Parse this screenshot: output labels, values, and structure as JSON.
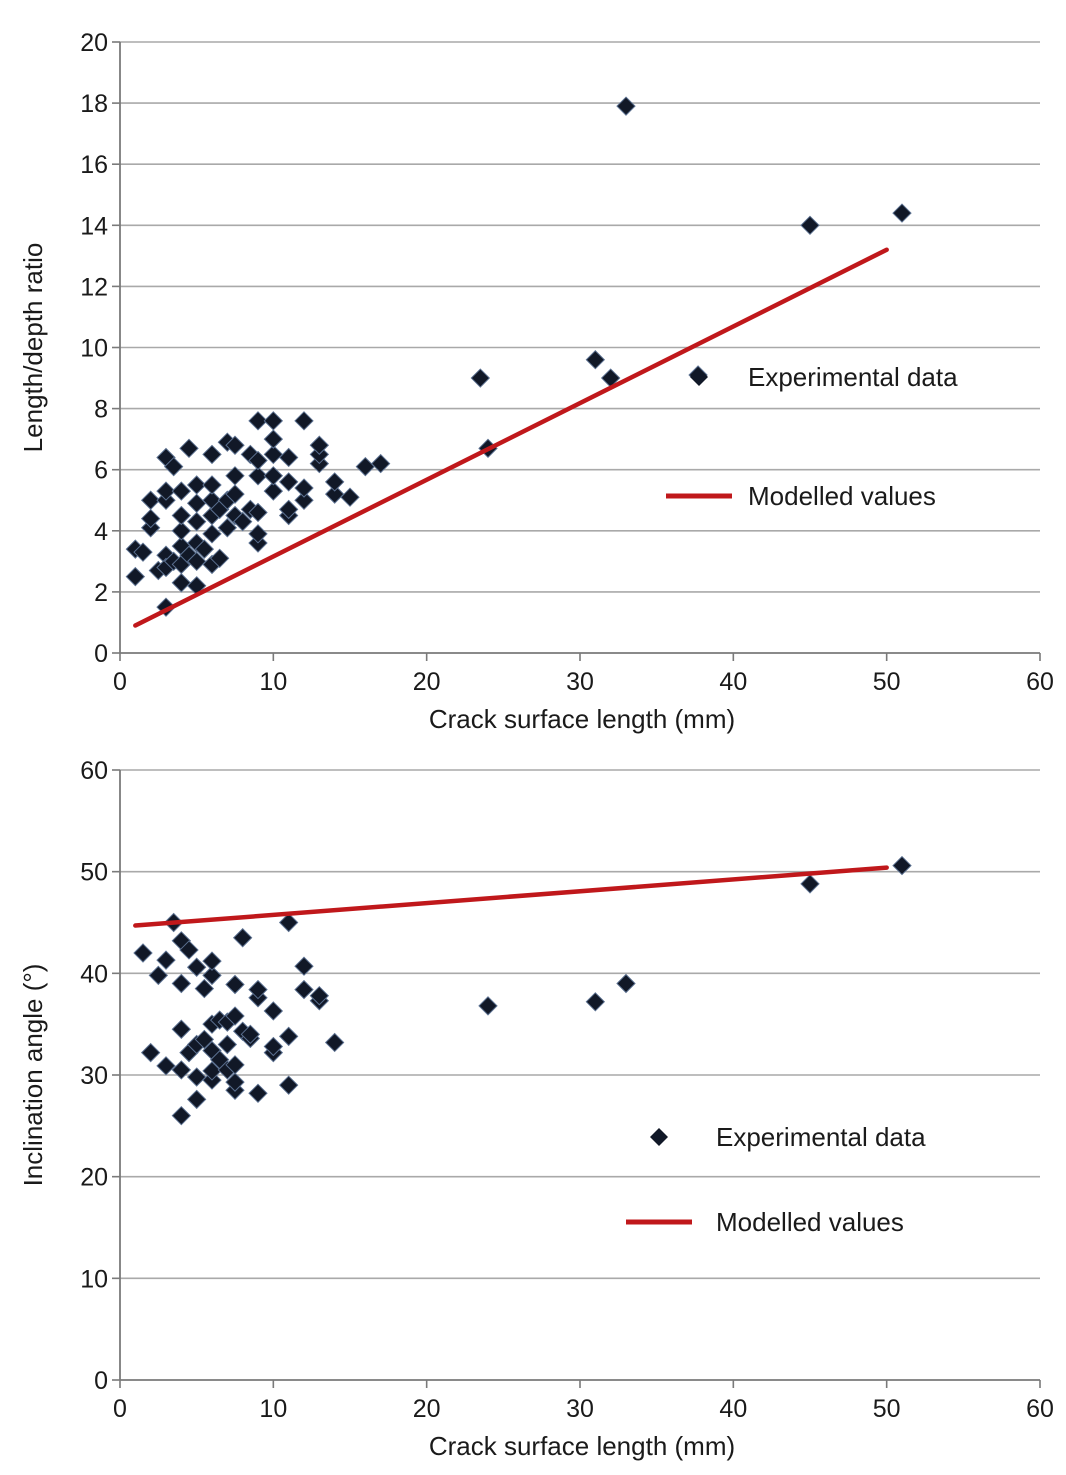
{
  "chart_data": [
    {
      "type": "scatter",
      "title": "",
      "xlabel": "Crack surface length (mm)",
      "ylabel": "Length/depth ratio",
      "xlim": [
        0,
        60
      ],
      "ylim": [
        0,
        20
      ],
      "xticks": [
        "0",
        "10",
        "20",
        "30",
        "40",
        "50",
        "60"
      ],
      "yticks": [
        "0",
        "2",
        "4",
        "6",
        "8",
        "10",
        "12",
        "14",
        "16",
        "18",
        "20"
      ],
      "grid": "horizontal",
      "legend_position": "right",
      "colors": {
        "points": "#111827",
        "line": "#c0181b"
      },
      "series": [
        {
          "name": "Experimental data",
          "kind": "scatter",
          "points": [
            [
              1,
              2.5
            ],
            [
              1,
              3.4
            ],
            [
              1.5,
              3.3
            ],
            [
              2,
              4.1
            ],
            [
              2,
              4.4
            ],
            [
              2,
              5.0
            ],
            [
              2.5,
              2.7
            ],
            [
              3,
              1.5
            ],
            [
              3,
              3.2
            ],
            [
              3,
              2.8
            ],
            [
              3,
              5.0
            ],
            [
              3,
              5.3
            ],
            [
              3,
              6.4
            ],
            [
              3.5,
              6.1
            ],
            [
              3.5,
              3.0
            ],
            [
              4,
              2.3
            ],
            [
              4,
              2.9
            ],
            [
              4,
              3.5
            ],
            [
              4,
              4.0
            ],
            [
              4,
              4.5
            ],
            [
              4,
              5.3
            ],
            [
              4.5,
              6.7
            ],
            [
              4.5,
              3.2
            ],
            [
              5,
              2.2
            ],
            [
              5,
              3.0
            ],
            [
              5,
              3.6
            ],
            [
              5,
              4.3
            ],
            [
              5,
              4.9
            ],
            [
              5,
              5.5
            ],
            [
              5.5,
              3.4
            ],
            [
              6,
              2.9
            ],
            [
              6,
              3.9
            ],
            [
              6,
              4.5
            ],
            [
              6,
              5.0
            ],
            [
              6,
              5.5
            ],
            [
              6,
              6.5
            ],
            [
              6.5,
              3.1
            ],
            [
              6.5,
              4.7
            ],
            [
              7,
              4.1
            ],
            [
              7,
              5.0
            ],
            [
              7,
              6.9
            ],
            [
              7.5,
              4.5
            ],
            [
              7.5,
              5.2
            ],
            [
              7.5,
              5.8
            ],
            [
              7.5,
              6.8
            ],
            [
              8,
              4.3
            ],
            [
              8.5,
              4.7
            ],
            [
              8.5,
              6.5
            ],
            [
              9,
              3.6
            ],
            [
              9,
              3.9
            ],
            [
              9,
              4.6
            ],
            [
              9,
              5.8
            ],
            [
              9,
              6.3
            ],
            [
              9,
              7.6
            ],
            [
              10,
              5.3
            ],
            [
              10,
              5.8
            ],
            [
              10,
              6.5
            ],
            [
              10,
              7.0
            ],
            [
              10,
              7.6
            ],
            [
              11,
              4.5
            ],
            [
              11,
              4.7
            ],
            [
              11,
              5.6
            ],
            [
              11,
              6.4
            ],
            [
              12,
              5.0
            ],
            [
              12,
              5.4
            ],
            [
              12,
              7.6
            ],
            [
              13,
              6.2
            ],
            [
              13,
              6.5
            ],
            [
              13,
              6.8
            ],
            [
              14,
              5.2
            ],
            [
              14,
              5.6
            ],
            [
              15,
              5.1
            ],
            [
              16,
              6.1
            ],
            [
              17,
              6.2
            ],
            [
              23.5,
              9.0
            ],
            [
              24,
              6.7
            ],
            [
              31,
              9.6
            ],
            [
              32,
              9.0
            ],
            [
              33,
              17.9
            ],
            [
              37.7,
              9.1
            ],
            [
              45,
              14.0
            ],
            [
              51,
              14.4
            ]
          ]
        },
        {
          "name": "Modelled values",
          "kind": "line",
          "points": [
            [
              1,
              0.9
            ],
            [
              50,
              13.2
            ]
          ]
        }
      ]
    },
    {
      "type": "scatter",
      "title": "",
      "xlabel": "Crack surface length (mm)",
      "ylabel": "Inclination angle (°)",
      "xlim": [
        0,
        60
      ],
      "ylim": [
        0,
        60
      ],
      "xticks": [
        "0",
        "10",
        "20",
        "30",
        "40",
        "50",
        "60"
      ],
      "yticks": [
        "0",
        "10",
        "20",
        "30",
        "40",
        "50",
        "60"
      ],
      "grid": "horizontal",
      "legend_position": "bottom-right",
      "colors": {
        "points": "#111827",
        "line": "#c0181b"
      },
      "series": [
        {
          "name": "Experimental data",
          "kind": "scatter",
          "points": [
            [
              1.5,
              42.0
            ],
            [
              2,
              32.2
            ],
            [
              2.5,
              39.8
            ],
            [
              3,
              30.9
            ],
            [
              3,
              41.3
            ],
            [
              3.5,
              45.0
            ],
            [
              4,
              26.0
            ],
            [
              4,
              30.5
            ],
            [
              4,
              34.5
            ],
            [
              4,
              39.0
            ],
            [
              4,
              43.2
            ],
            [
              4.5,
              42.3
            ],
            [
              4.5,
              32.2
            ],
            [
              5,
              27.6
            ],
            [
              5,
              29.8
            ],
            [
              5,
              33.0
            ],
            [
              5,
              40.6
            ],
            [
              5.5,
              33.5
            ],
            [
              5.5,
              38.5
            ],
            [
              6,
              29.5
            ],
            [
              6,
              30.4
            ],
            [
              6,
              32.4
            ],
            [
              6,
              35.0
            ],
            [
              6,
              39.8
            ],
            [
              6,
              41.2
            ],
            [
              6.5,
              31.5
            ],
            [
              6.5,
              35.4
            ],
            [
              7,
              30.5
            ],
            [
              7,
              33.0
            ],
            [
              7,
              35.2
            ],
            [
              7.5,
              28.5
            ],
            [
              7.5,
              29.3
            ],
            [
              7.5,
              31.0
            ],
            [
              7.5,
              35.8
            ],
            [
              7.5,
              38.9
            ],
            [
              8,
              34.3
            ],
            [
              8,
              43.5
            ],
            [
              8.5,
              33.6
            ],
            [
              8.5,
              34.0
            ],
            [
              9,
              28.2
            ],
            [
              9,
              37.6
            ],
            [
              9,
              38.4
            ],
            [
              10,
              32.2
            ],
            [
              10,
              32.8
            ],
            [
              10,
              36.3
            ],
            [
              11,
              29.0
            ],
            [
              11,
              33.8
            ],
            [
              11,
              45.0
            ],
            [
              12,
              38.4
            ],
            [
              12,
              40.7
            ],
            [
              13,
              37.3
            ],
            [
              13,
              37.8
            ],
            [
              14,
              33.2
            ],
            [
              24,
              36.8
            ],
            [
              31,
              37.2
            ],
            [
              33,
              39.0
            ],
            [
              45,
              48.8
            ],
            [
              51,
              50.6
            ]
          ]
        },
        {
          "name": "Modelled values",
          "kind": "line",
          "points": [
            [
              1,
              44.7
            ],
            [
              50,
              50.4
            ]
          ]
        }
      ]
    }
  ]
}
